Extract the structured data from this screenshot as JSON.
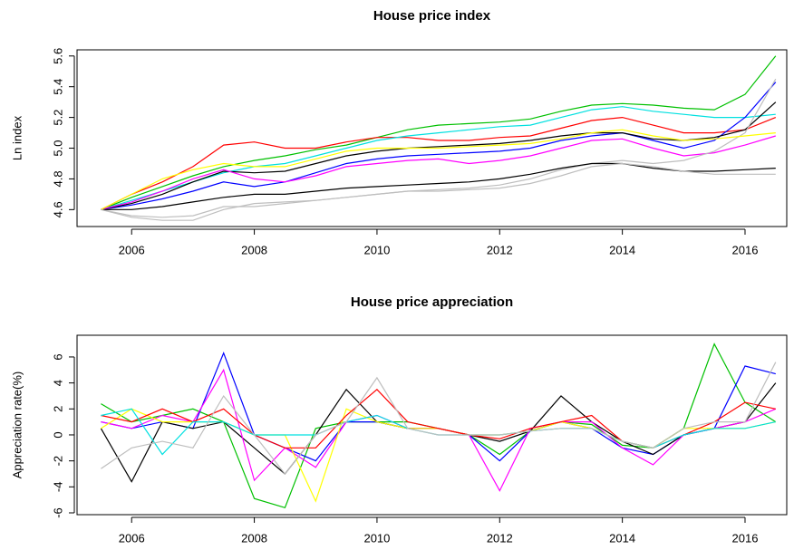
{
  "chart_data": [
    {
      "type": "line",
      "title": "House price index",
      "y_label": "Ln index",
      "x": [
        2005.5,
        2006,
        2006.5,
        2007,
        2007.5,
        2008,
        2008.5,
        2009,
        2009.5,
        2010,
        2010.5,
        2011,
        2011.5,
        2012,
        2012.5,
        2013,
        2013.5,
        2014,
        2014.5,
        2015,
        2015.5,
        2016,
        2016.5
      ],
      "xlim": [
        2005.11,
        2016.68
      ],
      "xticks": [
        2006,
        2008,
        2010,
        2012,
        2014,
        2016
      ],
      "ylim": [
        4.49,
        5.64
      ],
      "yticks": [
        4.6,
        4.8,
        {
          "value": 5,
          "label": "5.0"
        },
        5.2,
        5.4,
        5.6
      ],
      "series": [
        {
          "color": "#00c000",
          "values": [
            4.6,
            4.68,
            4.75,
            4.82,
            4.88,
            4.92,
            4.95,
            4.99,
            5.02,
            5.07,
            5.12,
            5.15,
            5.16,
            5.17,
            5.19,
            5.24,
            5.28,
            5.29,
            5.28,
            5.26,
            5.25,
            5.35,
            5.6
          ]
        },
        {
          "color": "#ff0000",
          "values": [
            4.6,
            4.7,
            4.78,
            4.88,
            5.02,
            5.04,
            5.0,
            5.0,
            5.04,
            5.07,
            5.07,
            5.05,
            5.05,
            5.07,
            5.08,
            5.13,
            5.18,
            5.2,
            5.15,
            5.1,
            5.1,
            5.12,
            5.2
          ]
        },
        {
          "color": "#00e0e0",
          "values": [
            4.6,
            4.66,
            4.72,
            4.78,
            4.84,
            4.88,
            4.9,
            4.95,
            5.0,
            5.05,
            5.08,
            5.1,
            5.12,
            5.14,
            5.15,
            5.2,
            5.25,
            5.27,
            5.24,
            5.22,
            5.2,
            5.2,
            5.22
          ]
        },
        {
          "color": "#0000ff",
          "values": [
            4.6,
            4.63,
            4.67,
            4.72,
            4.78,
            4.75,
            4.78,
            4.84,
            4.9,
            4.93,
            4.95,
            4.96,
            4.97,
            4.98,
            5.0,
            5.05,
            5.08,
            5.1,
            5.05,
            5.0,
            5.05,
            5.2,
            5.43
          ]
        },
        {
          "color": "#000000",
          "values": [
            4.6,
            4.64,
            4.7,
            4.78,
            4.85,
            4.84,
            4.85,
            4.9,
            4.95,
            4.98,
            5.0,
            5.01,
            5.02,
            5.03,
            5.05,
            5.08,
            5.1,
            5.1,
            5.06,
            5.05,
            5.07,
            5.12,
            5.3
          ]
        },
        {
          "color": "#ff00ff",
          "values": [
            4.6,
            4.65,
            4.72,
            4.8,
            4.86,
            4.8,
            4.78,
            4.82,
            4.88,
            4.9,
            4.92,
            4.93,
            4.9,
            4.92,
            4.95,
            5.0,
            5.05,
            5.06,
            5.0,
            4.95,
            4.97,
            5.02,
            5.08
          ]
        },
        {
          "color": "#bebebe",
          "values": [
            4.6,
            4.56,
            4.55,
            4.56,
            4.62,
            4.62,
            4.64,
            4.66,
            4.68,
            4.7,
            4.72,
            4.73,
            4.74,
            4.76,
            4.8,
            4.86,
            4.9,
            4.92,
            4.9,
            4.92,
            4.98,
            5.1,
            5.45
          ]
        },
        {
          "color": "#000000",
          "values": [
            4.6,
            4.6,
            4.62,
            4.65,
            4.68,
            4.7,
            4.7,
            4.72,
            4.74,
            4.75,
            4.76,
            4.77,
            4.78,
            4.8,
            4.83,
            4.87,
            4.9,
            4.9,
            4.87,
            4.85,
            4.85,
            4.86,
            4.87
          ]
        },
        {
          "color": "#ffff00",
          "values": [
            4.6,
            4.7,
            4.8,
            4.86,
            4.9,
            4.88,
            4.88,
            4.93,
            4.98,
            5.0,
            5.0,
            5.0,
            5.01,
            5.02,
            5.03,
            5.06,
            5.1,
            5.12,
            5.08,
            5.05,
            5.06,
            5.08,
            5.1
          ]
        },
        {
          "color": "#bebebe",
          "values": [
            4.6,
            4.55,
            4.53,
            4.53,
            4.6,
            4.64,
            4.65,
            4.66,
            4.68,
            4.7,
            4.72,
            4.72,
            4.73,
            4.74,
            4.77,
            4.82,
            4.88,
            4.9,
            4.88,
            4.85,
            4.83,
            4.83,
            4.83
          ]
        }
      ]
    },
    {
      "type": "line",
      "title": "House price appreciation",
      "y_label": "Appreciation rate(%)",
      "x": [
        2005.5,
        2006,
        2006.5,
        2007,
        2007.5,
        2008,
        2008.5,
        2009,
        2009.5,
        2010,
        2010.5,
        2011,
        2011.5,
        2012,
        2012.5,
        2013,
        2013.5,
        2014,
        2014.5,
        2015,
        2015.5,
        2016,
        2016.5
      ],
      "xlim": [
        2005.11,
        2016.68
      ],
      "xticks": [
        2006,
        2008,
        2010,
        2012,
        2014,
        2016
      ],
      "ylim": [
        -6.14,
        7.67
      ],
      "yticks": [
        -6,
        -4,
        -2,
        0,
        2,
        4,
        6
      ],
      "series": [
        {
          "color": "#00c000",
          "values": [
            2.4,
            1,
            1.5,
            2,
            1,
            -4.9,
            -5.6,
            0.5,
            1,
            1,
            1,
            0.5,
            0,
            -1.5,
            0.3,
            1,
            0.8,
            -0.8,
            -1,
            0.5,
            7,
            2.5,
            1
          ]
        },
        {
          "color": "#0000ff",
          "values": [
            1,
            0.5,
            1,
            0.5,
            6.3,
            0,
            -1,
            -2,
            1,
            1,
            0.5,
            0.5,
            0,
            -2,
            0.3,
            1,
            0.5,
            -1,
            -1.5,
            0,
            0.5,
            5.3,
            4.7
          ]
        },
        {
          "color": "#000000",
          "values": [
            0.5,
            -3.6,
            1,
            0.5,
            1,
            -1,
            -3,
            0,
            3.5,
            1,
            0.5,
            0.5,
            0,
            -0.5,
            0.3,
            3,
            1,
            -0.5,
            -1.5,
            0,
            0.5,
            1,
            4
          ]
        },
        {
          "color": "#ff00ff",
          "values": [
            1,
            0.5,
            1.5,
            1,
            5,
            -3.5,
            -1,
            -2.5,
            1,
            1.5,
            0.5,
            0.5,
            0,
            -4.3,
            0.5,
            1,
            1,
            -1,
            -2.3,
            0,
            0.5,
            1,
            2
          ]
        },
        {
          "color": "#ffff00",
          "values": [
            0.5,
            2,
            1,
            1,
            1,
            0,
            0,
            -5.1,
            2,
            1,
            0.5,
            0.5,
            0,
            0,
            0.3,
            1,
            0.5,
            -0.5,
            -1,
            0.5,
            0.5,
            0.5,
            1
          ]
        },
        {
          "color": "#ff0000",
          "values": [
            1.5,
            1,
            2,
            1,
            2,
            0,
            -1,
            -1,
            1.5,
            3.5,
            1,
            0.5,
            0,
            -0.3,
            0.5,
            1,
            1.5,
            -0.5,
            -1,
            0,
            1,
            2.5,
            2
          ]
        },
        {
          "color": "#00e0e0",
          "values": [
            1.5,
            2,
            -1.5,
            1,
            1,
            0,
            0,
            0,
            1,
            1.5,
            0.5,
            0,
            0,
            0,
            0.3,
            0.5,
            0.5,
            -0.5,
            -1,
            0,
            0.5,
            0.5,
            1
          ]
        },
        {
          "color": "#bebebe",
          "values": [
            -2.6,
            -1,
            -0.5,
            -1,
            3,
            0,
            -3,
            0,
            1,
            4.4,
            0.5,
            0,
            0,
            0,
            0.3,
            0.5,
            0.5,
            -0.5,
            -1,
            0.5,
            1,
            1,
            5.6
          ]
        }
      ]
    }
  ]
}
